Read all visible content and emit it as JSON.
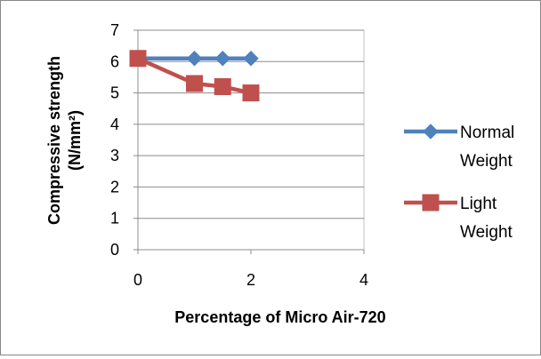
{
  "chart_data": {
    "type": "line",
    "xlabel": "Percentage of Micro Air-720",
    "ylabel_lines": [
      "Compressive strength",
      "(N/mm²)"
    ],
    "xlim": [
      0,
      4
    ],
    "ylim": [
      0,
      7
    ],
    "x_ticks": [
      0,
      2,
      4
    ],
    "y_ticks": [
      0,
      1,
      2,
      3,
      4,
      5,
      6,
      7
    ],
    "grid": "horizontal",
    "legend_position": "right",
    "series": [
      {
        "name_lines": [
          "Normal",
          "Weight"
        ],
        "color": "#4F81BD",
        "marker": "diamond",
        "x": [
          0,
          1,
          1.5,
          2
        ],
        "y": [
          6.1,
          6.1,
          6.1,
          6.1
        ]
      },
      {
        "name_lines": [
          "Light",
          "Weight"
        ],
        "color": "#C0504D",
        "marker": "square",
        "x": [
          0,
          1,
          1.5,
          2
        ],
        "y": [
          6.1,
          5.3,
          5.2,
          5.0
        ]
      }
    ]
  }
}
